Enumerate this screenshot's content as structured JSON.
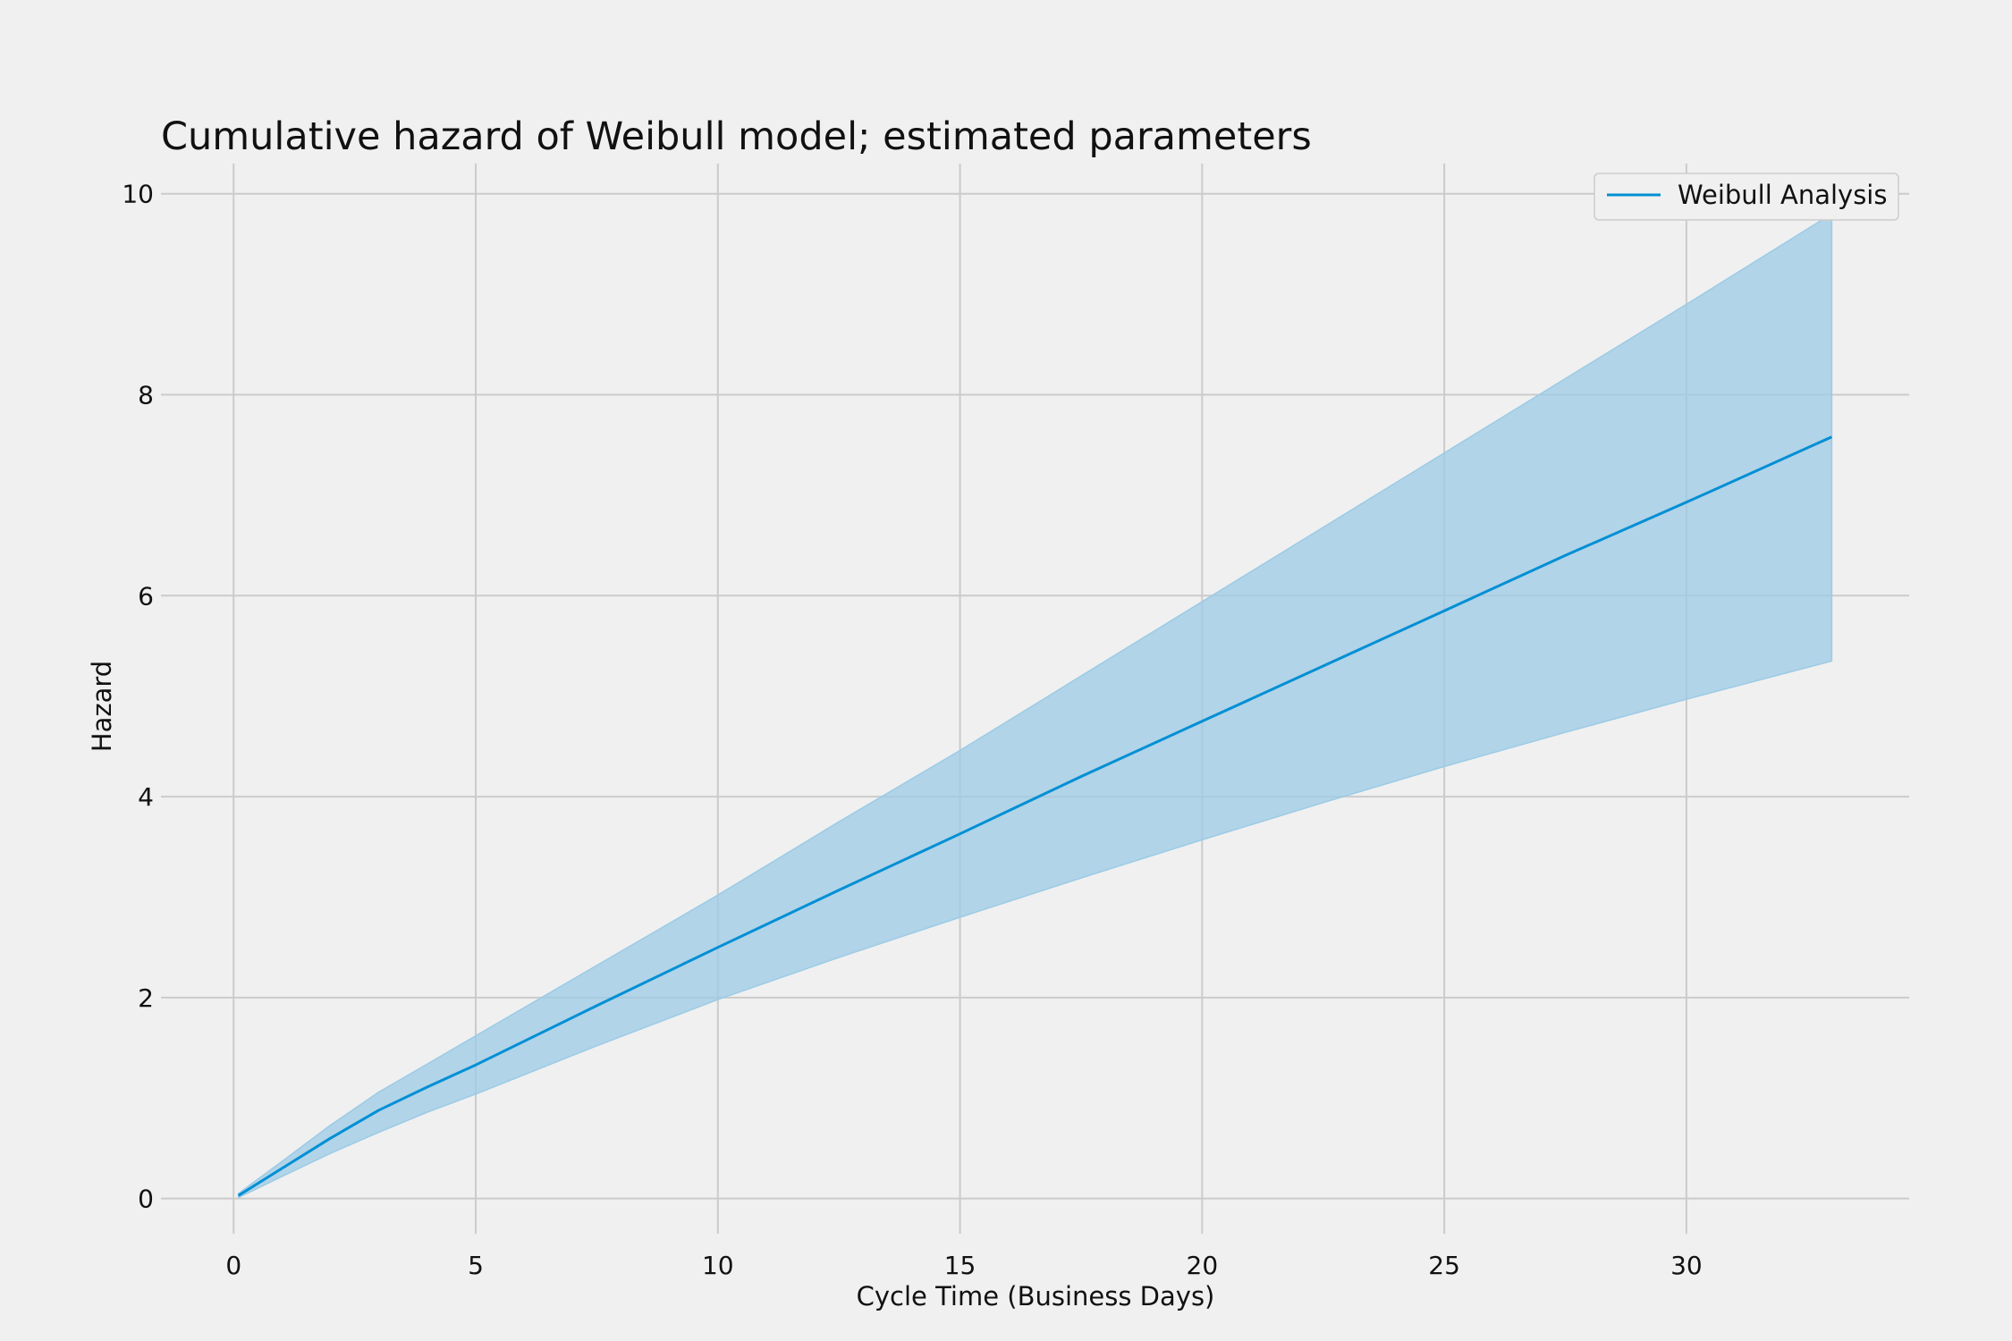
{
  "chart_data": {
    "type": "area",
    "title": "Cumulative hazard of Weibull model; estimated parameters",
    "xlabel": "Cycle Time (Business Days)",
    "ylabel": "Hazard",
    "xlim": [
      -1.5,
      34.6
    ],
    "ylim": [
      -0.35,
      10.3
    ],
    "xticks": [
      0,
      5,
      10,
      15,
      20,
      25,
      30
    ],
    "yticks": [
      0,
      2,
      4,
      6,
      8,
      10
    ],
    "grid": true,
    "legend": {
      "placement": "top-right",
      "entries": [
        "Weibull Analysis"
      ]
    },
    "series": [
      {
        "name": "Weibull Analysis",
        "color": "#008fd5",
        "band_color": "#9ccbe6",
        "x": [
          0.1,
          1,
          2,
          3,
          4,
          5,
          7.5,
          10,
          12.5,
          15,
          17.5,
          20,
          22.5,
          25,
          27.5,
          30,
          33
        ],
        "y": [
          0.03,
          0.3,
          0.6,
          0.88,
          1.11,
          1.33,
          1.92,
          2.5,
          3.07,
          3.63,
          4.2,
          4.75,
          5.3,
          5.85,
          6.4,
          6.93,
          7.58
        ],
        "lower": [
          0.01,
          0.22,
          0.45,
          0.66,
          0.86,
          1.04,
          1.52,
          1.98,
          2.4,
          2.8,
          3.19,
          3.57,
          3.94,
          4.3,
          4.64,
          4.97,
          5.35
        ],
        "upper": [
          0.05,
          0.37,
          0.73,
          1.06,
          1.34,
          1.62,
          2.32,
          3.02,
          3.75,
          4.46,
          5.2,
          5.94,
          6.68,
          7.42,
          8.16,
          8.9,
          9.8
        ]
      }
    ]
  }
}
